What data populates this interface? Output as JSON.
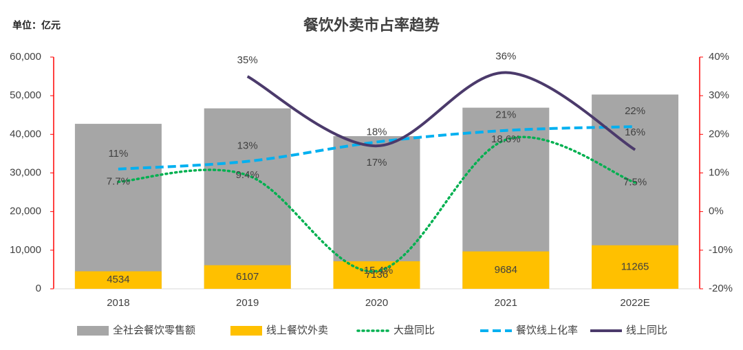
{
  "chart_data": {
    "type": "combo",
    "title": "餐饮外卖市占率趋势",
    "unit_label": "单位：亿元",
    "categories": [
      "2018",
      "2019",
      "2020",
      "2021",
      "2022E"
    ],
    "series": [
      {
        "name": "全社会餐饮零售额",
        "type": "bar",
        "color": "#a6a6a6",
        "values": [
          42716,
          46721,
          39527,
          46895,
          50300
        ]
      },
      {
        "name": "线上餐饮外卖",
        "type": "bar",
        "color": "#ffc000",
        "values": [
          4534,
          6107,
          7136,
          9684,
          11265
        ]
      },
      {
        "name": "大盘同比",
        "type": "line",
        "style": "dotted",
        "axis": "y2",
        "color": "#00b050",
        "values": [
          7.7,
          9.4,
          -15.4,
          18.6,
          7.5
        ],
        "value_labels": [
          "7.7%",
          "9.4%",
          "-15.4%",
          "18.6%",
          "7.5%"
        ]
      },
      {
        "name": "餐饮线上化率",
        "type": "line",
        "style": "dashed",
        "axis": "y2",
        "color": "#00b0f0",
        "values": [
          11,
          13,
          18,
          21,
          22
        ],
        "value_labels": [
          "11%",
          "13%",
          "18%",
          "21%",
          "22%"
        ]
      },
      {
        "name": "线上同比",
        "type": "line",
        "style": "solid",
        "axis": "y2",
        "color": "#4b3a6b",
        "values": [
          null,
          35,
          17,
          36,
          16
        ],
        "value_labels": [
          null,
          "35%",
          "17%",
          "36%",
          "16%"
        ]
      }
    ],
    "ylim": [
      0,
      60000
    ],
    "yticks": [
      0,
      {
        "value": 10000,
        "label": "10,000"
      },
      {
        "value": 20000,
        "label": "20,000"
      },
      {
        "value": 30000,
        "label": "30,000"
      },
      {
        "value": 40000,
        "label": "40,000"
      },
      {
        "value": 50000,
        "label": "50,000"
      },
      {
        "value": 60000,
        "label": "60,000"
      }
    ],
    "y2lim": [
      -20,
      40
    ],
    "y2ticks": [
      {
        "value": -20,
        "label": "-20%"
      },
      {
        "value": -10,
        "label": "-10%"
      },
      {
        "value": 0,
        "label": "0%"
      },
      {
        "value": 10,
        "label": "10%"
      },
      {
        "value": 20,
        "label": "20%"
      },
      {
        "value": 30,
        "label": "30%"
      },
      {
        "value": 40,
        "label": "40%"
      }
    ],
    "axis_color": "#ff0000",
    "legend": "bottom"
  }
}
